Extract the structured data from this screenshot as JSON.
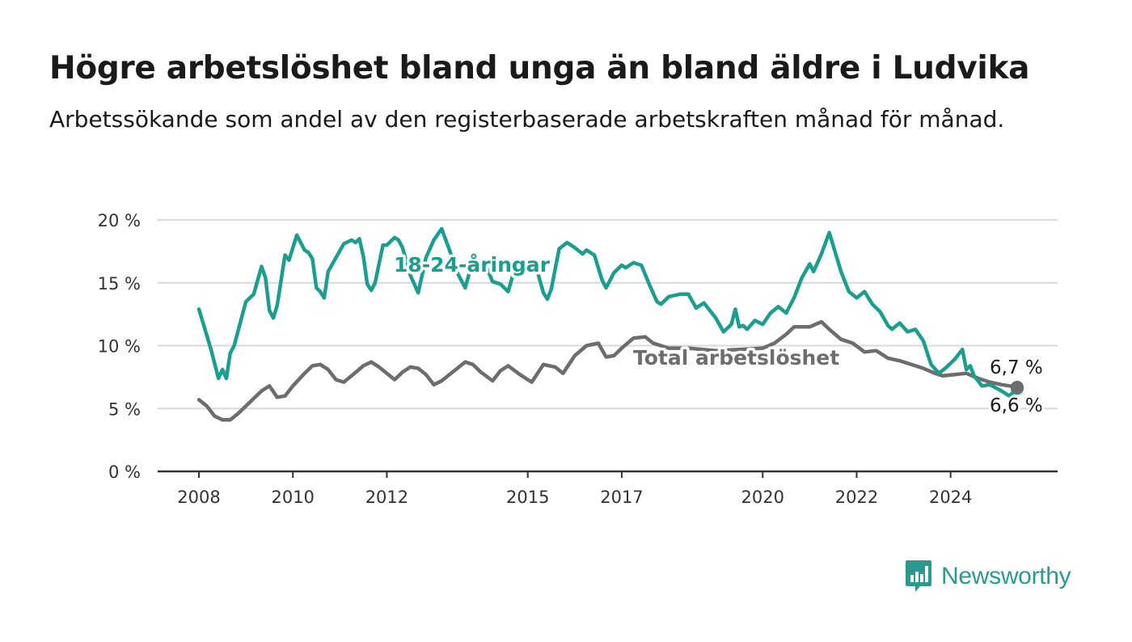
{
  "title": "Högre arbetslöshet bland unga än bland äldre i Ludvika",
  "subtitle": "Arbetssökande som andel av den registerbaserade arbetskraften månad för månad.",
  "brand": {
    "name": "Newsworthy",
    "icon": "bar-chart-speech-bubble-icon",
    "color": "#2a9a8e"
  },
  "chart_data": {
    "type": "line",
    "title": "Högre arbetslöshet bland unga än bland äldre i Ludvika",
    "subtitle": "Arbetssökande som andel av den registerbaserade arbetskraften månad för månad.",
    "x_ticks": [
      "2008",
      "2010",
      "2012",
      "2015",
      "2017",
      "2020",
      "2022",
      "2024"
    ],
    "y_ticks": [
      "0 %",
      "5 %",
      "10 %",
      "15 %",
      "20 %"
    ],
    "ylim": [
      0,
      20
    ],
    "xlim": [
      "2008-01",
      "2025-10"
    ],
    "grid": "horizontal",
    "series": [
      {
        "name": "18-24-åringar",
        "color": "#1a9e8f",
        "last_label": "6,6 %",
        "points": [
          [
            "2008-01",
            12.9
          ],
          [
            "2008-04",
            9.8
          ],
          [
            "2008-06",
            7.4
          ],
          [
            "2008-07",
            8.1
          ],
          [
            "2008-08",
            7.4
          ],
          [
            "2008-09",
            9.4
          ],
          [
            "2008-10",
            10.0
          ],
          [
            "2009-01",
            13.5
          ],
          [
            "2009-03",
            14.1
          ],
          [
            "2009-05",
            16.3
          ],
          [
            "2009-06",
            15.4
          ],
          [
            "2009-07",
            12.8
          ],
          [
            "2009-08",
            12.2
          ],
          [
            "2009-09",
            13.2
          ],
          [
            "2009-11",
            17.2
          ],
          [
            "2009-12",
            16.8
          ],
          [
            "2010-02",
            18.8
          ],
          [
            "2010-03",
            18.2
          ],
          [
            "2010-04",
            17.6
          ],
          [
            "2010-05",
            17.4
          ],
          [
            "2010-06",
            16.9
          ],
          [
            "2010-07",
            14.6
          ],
          [
            "2010-08",
            14.3
          ],
          [
            "2010-09",
            13.8
          ],
          [
            "2010-10",
            15.9
          ],
          [
            "2010-12",
            17.0
          ],
          [
            "2011-02",
            18.1
          ],
          [
            "2011-04",
            18.4
          ],
          [
            "2011-05",
            18.2
          ],
          [
            "2011-06",
            18.5
          ],
          [
            "2011-07",
            17.1
          ],
          [
            "2011-08",
            14.9
          ],
          [
            "2011-09",
            14.4
          ],
          [
            "2011-10",
            15.0
          ],
          [
            "2011-12",
            18.0
          ],
          [
            "2012-01",
            18.0
          ],
          [
            "2012-03",
            18.6
          ],
          [
            "2012-04",
            18.4
          ],
          [
            "2012-05",
            17.8
          ],
          [
            "2012-07",
            15.6
          ],
          [
            "2012-09",
            14.2
          ],
          [
            "2012-11",
            17.0
          ],
          [
            "2013-01",
            18.4
          ],
          [
            "2013-03",
            19.3
          ],
          [
            "2013-05",
            17.6
          ],
          [
            "2013-07",
            15.8
          ],
          [
            "2013-09",
            14.6
          ],
          [
            "2013-11",
            16.8
          ],
          [
            "2014-02",
            16.6
          ],
          [
            "2014-04",
            15.1
          ],
          [
            "2014-06",
            14.9
          ],
          [
            "2014-08",
            14.3
          ],
          [
            "2014-10",
            16.5
          ],
          [
            "2015-01",
            16.6
          ],
          [
            "2015-03",
            16.4
          ],
          [
            "2015-05",
            14.2
          ],
          [
            "2015-06",
            13.7
          ],
          [
            "2015-07",
            14.5
          ],
          [
            "2015-09",
            17.7
          ],
          [
            "2015-11",
            18.2
          ],
          [
            "2016-01",
            17.8
          ],
          [
            "2016-03",
            17.3
          ],
          [
            "2016-04",
            17.6
          ],
          [
            "2016-06",
            17.2
          ],
          [
            "2016-08",
            15.2
          ],
          [
            "2016-09",
            14.6
          ],
          [
            "2016-11",
            15.8
          ],
          [
            "2017-01",
            16.4
          ],
          [
            "2017-02",
            16.2
          ],
          [
            "2017-04",
            16.6
          ],
          [
            "2017-06",
            16.4
          ],
          [
            "2017-08",
            14.9
          ],
          [
            "2017-10",
            13.5
          ],
          [
            "2017-11",
            13.3
          ],
          [
            "2018-01",
            13.9
          ],
          [
            "2018-04",
            14.1
          ],
          [
            "2018-06",
            14.1
          ],
          [
            "2018-08",
            13.0
          ],
          [
            "2018-10",
            13.4
          ],
          [
            "2019-01",
            12.2
          ],
          [
            "2019-03",
            11.1
          ],
          [
            "2019-05",
            11.7
          ],
          [
            "2019-06",
            12.9
          ],
          [
            "2019-07",
            11.5
          ],
          [
            "2019-08",
            11.6
          ],
          [
            "2019-09",
            11.3
          ],
          [
            "2019-11",
            12.0
          ],
          [
            "2020-01",
            11.7
          ],
          [
            "2020-03",
            12.6
          ],
          [
            "2020-05",
            13.1
          ],
          [
            "2020-07",
            12.6
          ],
          [
            "2020-09",
            13.8
          ],
          [
            "2020-11",
            15.4
          ],
          [
            "2021-01",
            16.5
          ],
          [
            "2021-02",
            15.9
          ],
          [
            "2021-04",
            17.3
          ],
          [
            "2021-06",
            19.0
          ],
          [
            "2021-09",
            15.9
          ],
          [
            "2021-11",
            14.3
          ],
          [
            "2022-01",
            13.8
          ],
          [
            "2022-03",
            14.3
          ],
          [
            "2022-05",
            13.3
          ],
          [
            "2022-07",
            12.7
          ],
          [
            "2022-09",
            11.6
          ],
          [
            "2022-10",
            11.3
          ],
          [
            "2022-12",
            11.8
          ],
          [
            "2023-02",
            11.1
          ],
          [
            "2023-04",
            11.3
          ],
          [
            "2023-06",
            10.4
          ],
          [
            "2023-08",
            8.5
          ],
          [
            "2023-10",
            7.8
          ],
          [
            "2023-12",
            8.3
          ],
          [
            "2024-02",
            8.9
          ],
          [
            "2024-04",
            9.7
          ],
          [
            "2024-05",
            8.1
          ],
          [
            "2024-06",
            8.4
          ],
          [
            "2024-07",
            7.6
          ],
          [
            "2024-09",
            6.8
          ],
          [
            "2024-11",
            6.9
          ],
          [
            "2025-02",
            6.4
          ],
          [
            "2025-04",
            6.0
          ],
          [
            "2025-06",
            6.6
          ]
        ]
      },
      {
        "name": "Total arbetslöshet",
        "color": "#6d6d6d",
        "last_label": "6,7 %",
        "points": [
          [
            "2008-01",
            5.7
          ],
          [
            "2008-03",
            5.2
          ],
          [
            "2008-05",
            4.4
          ],
          [
            "2008-07",
            4.1
          ],
          [
            "2008-09",
            4.1
          ],
          [
            "2008-11",
            4.6
          ],
          [
            "2009-02",
            5.5
          ],
          [
            "2009-05",
            6.4
          ],
          [
            "2009-07",
            6.8
          ],
          [
            "2009-09",
            5.9
          ],
          [
            "2009-11",
            6.0
          ],
          [
            "2010-01",
            6.8
          ],
          [
            "2010-04",
            7.8
          ],
          [
            "2010-06",
            8.4
          ],
          [
            "2010-08",
            8.5
          ],
          [
            "2010-10",
            8.1
          ],
          [
            "2010-12",
            7.3
          ],
          [
            "2011-02",
            7.1
          ],
          [
            "2011-04",
            7.6
          ],
          [
            "2011-07",
            8.4
          ],
          [
            "2011-09",
            8.7
          ],
          [
            "2011-11",
            8.3
          ],
          [
            "2012-01",
            7.8
          ],
          [
            "2012-03",
            7.3
          ],
          [
            "2012-05",
            7.9
          ],
          [
            "2012-07",
            8.3
          ],
          [
            "2012-09",
            8.2
          ],
          [
            "2012-11",
            7.7
          ],
          [
            "2013-01",
            6.9
          ],
          [
            "2013-03",
            7.2
          ],
          [
            "2013-05",
            7.7
          ],
          [
            "2013-07",
            8.2
          ],
          [
            "2013-09",
            8.7
          ],
          [
            "2013-11",
            8.5
          ],
          [
            "2014-01",
            7.9
          ],
          [
            "2014-04",
            7.2
          ],
          [
            "2014-06",
            8.0
          ],
          [
            "2014-08",
            8.4
          ],
          [
            "2014-11",
            7.7
          ],
          [
            "2015-02",
            7.1
          ],
          [
            "2015-05",
            8.5
          ],
          [
            "2015-08",
            8.3
          ],
          [
            "2015-10",
            7.8
          ],
          [
            "2016-01",
            9.2
          ],
          [
            "2016-04",
            10.0
          ],
          [
            "2016-07",
            10.2
          ],
          [
            "2016-09",
            9.1
          ],
          [
            "2016-11",
            9.2
          ],
          [
            "2017-01",
            9.8
          ],
          [
            "2017-04",
            10.6
          ],
          [
            "2017-07",
            10.7
          ],
          [
            "2017-09",
            10.2
          ],
          [
            "2018-01",
            9.8
          ],
          [
            "2018-06",
            9.8
          ],
          [
            "2019-01",
            9.6
          ],
          [
            "2019-07",
            9.7
          ],
          [
            "2020-01",
            9.8
          ],
          [
            "2020-04",
            10.2
          ],
          [
            "2020-07",
            10.9
          ],
          [
            "2020-09",
            11.5
          ],
          [
            "2021-01",
            11.5
          ],
          [
            "2021-04",
            11.9
          ],
          [
            "2021-06",
            11.3
          ],
          [
            "2021-09",
            10.5
          ],
          [
            "2021-12",
            10.2
          ],
          [
            "2022-03",
            9.5
          ],
          [
            "2022-06",
            9.6
          ],
          [
            "2022-09",
            9.0
          ],
          [
            "2022-12",
            8.8
          ],
          [
            "2023-03",
            8.5
          ],
          [
            "2023-06",
            8.2
          ],
          [
            "2023-09",
            7.8
          ],
          [
            "2023-11",
            7.6
          ],
          [
            "2024-02",
            7.7
          ],
          [
            "2024-05",
            7.8
          ],
          [
            "2024-08",
            7.4
          ],
          [
            "2024-11",
            7.1
          ],
          [
            "2025-02",
            6.9
          ],
          [
            "2025-06",
            6.7
          ]
        ]
      }
    ]
  }
}
